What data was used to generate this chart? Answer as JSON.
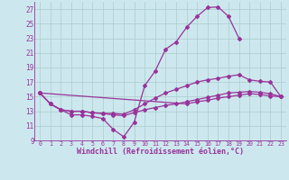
{
  "bg_color": "#cce8ee",
  "grid_color": "#aacccc",
  "line_color": "#993399",
  "xlabel": "Windchill (Refroidissement éolien,°C)",
  "xlim": [
    -0.5,
    23.5
  ],
  "ylim": [
    9,
    28
  ],
  "xticks": [
    0,
    1,
    2,
    3,
    4,
    5,
    6,
    7,
    8,
    9,
    10,
    11,
    12,
    13,
    14,
    15,
    16,
    17,
    18,
    19,
    20,
    21,
    22,
    23
  ],
  "yticks": [
    9,
    11,
    13,
    15,
    17,
    19,
    21,
    23,
    25,
    27
  ],
  "series1_x": [
    0,
    1,
    2,
    3,
    4,
    5,
    6,
    7,
    8,
    9,
    10,
    11,
    12,
    13,
    14,
    15,
    16,
    17,
    18,
    19
  ],
  "series1_y": [
    15.5,
    14.0,
    13.2,
    12.5,
    12.5,
    12.3,
    12.0,
    10.5,
    9.5,
    11.5,
    16.5,
    18.5,
    21.5,
    22.5,
    24.5,
    26.0,
    27.2,
    27.3,
    26.0,
    23.0
  ],
  "series2_x": [
    0,
    1,
    2,
    3,
    4,
    5,
    6,
    7,
    8,
    9,
    10,
    11,
    12,
    13,
    14,
    15,
    16,
    17,
    18,
    19,
    20,
    21,
    22,
    23
  ],
  "series2_y": [
    15.5,
    14.0,
    13.2,
    13.0,
    13.0,
    12.8,
    12.7,
    12.7,
    12.6,
    13.2,
    14.0,
    14.8,
    15.5,
    16.0,
    16.5,
    17.0,
    17.3,
    17.5,
    17.8,
    18.0,
    17.3,
    17.1,
    17.0,
    15.0
  ],
  "series3_x": [
    0,
    1,
    2,
    3,
    4,
    5,
    6,
    7,
    8,
    9,
    10,
    11,
    12,
    13,
    14,
    15,
    16,
    17,
    18,
    19,
    20,
    21,
    22,
    23
  ],
  "series3_y": [
    15.5,
    14.0,
    13.2,
    13.0,
    13.0,
    12.8,
    12.7,
    12.5,
    12.4,
    12.8,
    13.2,
    13.5,
    13.8,
    14.0,
    14.3,
    14.6,
    14.9,
    15.2,
    15.5,
    15.6,
    15.7,
    15.6,
    15.4,
    15.0
  ],
  "series4_x": [
    0,
    14,
    15,
    16,
    17,
    18,
    19,
    20,
    21,
    22,
    23
  ],
  "series4_y": [
    15.5,
    14.0,
    14.3,
    14.5,
    14.8,
    15.0,
    15.2,
    15.4,
    15.3,
    15.1,
    15.0
  ]
}
